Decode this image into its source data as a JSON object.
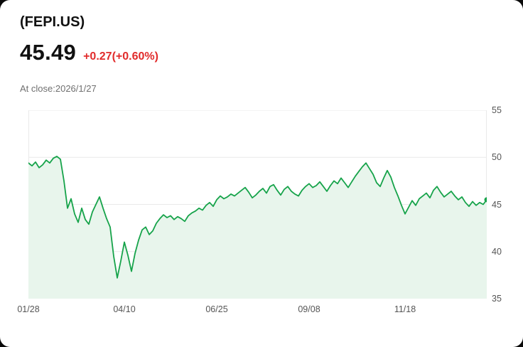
{
  "header": {
    "symbol": "(FEPI.US)",
    "price": "45.49",
    "change": "+0.27(+0.60%)",
    "close_info": "At close:2026/1/27"
  },
  "colors": {
    "line": "#16a34a",
    "area_fill": "#e8f5ec",
    "change_text": "#e12b2b",
    "grid": "#e9e9e9",
    "axis_text": "#555555",
    "muted_text": "#6f6f6f"
  },
  "chart_data": {
    "type": "area",
    "title": "(FEPI.US)",
    "xlabel": "",
    "ylabel": "",
    "legend": false,
    "grid": true,
    "x_tick_labels": [
      "01/28",
      "04/10",
      "06/25",
      "09/08",
      "11/18"
    ],
    "x_tick_indices": [
      0,
      27,
      53,
      79,
      106
    ],
    "y_ticks": [
      55,
      50,
      45,
      40,
      35
    ],
    "ylim": [
      35,
      55
    ],
    "last_close": 45.49,
    "values": [
      49.4,
      49.1,
      49.5,
      48.9,
      49.2,
      49.7,
      49.4,
      49.9,
      50.1,
      49.8,
      47.5,
      44.6,
      45.6,
      44.0,
      43.1,
      44.6,
      43.4,
      42.9,
      44.2,
      45.0,
      45.8,
      44.6,
      43.5,
      42.6,
      39.5,
      37.2,
      39.0,
      41.0,
      39.6,
      37.9,
      39.8,
      41.2,
      42.3,
      42.6,
      41.8,
      42.2,
      43.0,
      43.5,
      43.9,
      43.6,
      43.8,
      43.4,
      43.7,
      43.5,
      43.2,
      43.8,
      44.1,
      44.3,
      44.6,
      44.4,
      44.9,
      45.2,
      44.8,
      45.5,
      45.9,
      45.6,
      45.8,
      46.1,
      45.9,
      46.2,
      46.5,
      46.8,
      46.3,
      45.7,
      46.0,
      46.4,
      46.7,
      46.2,
      46.9,
      47.1,
      46.5,
      46.0,
      46.6,
      46.9,
      46.4,
      46.1,
      45.9,
      46.5,
      46.9,
      47.2,
      46.8,
      47.0,
      47.4,
      46.9,
      46.4,
      47.0,
      47.5,
      47.2,
      47.8,
      47.3,
      46.8,
      47.4,
      48.0,
      48.5,
      49.0,
      49.4,
      48.8,
      48.2,
      47.3,
      46.9,
      47.8,
      48.6,
      47.9,
      46.8,
      45.9,
      44.9,
      44.0,
      44.7,
      45.4,
      44.9,
      45.6,
      45.9,
      46.2,
      45.7,
      46.5,
      46.9,
      46.3,
      45.8,
      46.1,
      46.4,
      45.9,
      45.5,
      45.8,
      45.2,
      44.8,
      45.3,
      44.9,
      45.2,
      45.0,
      45.5
    ]
  }
}
